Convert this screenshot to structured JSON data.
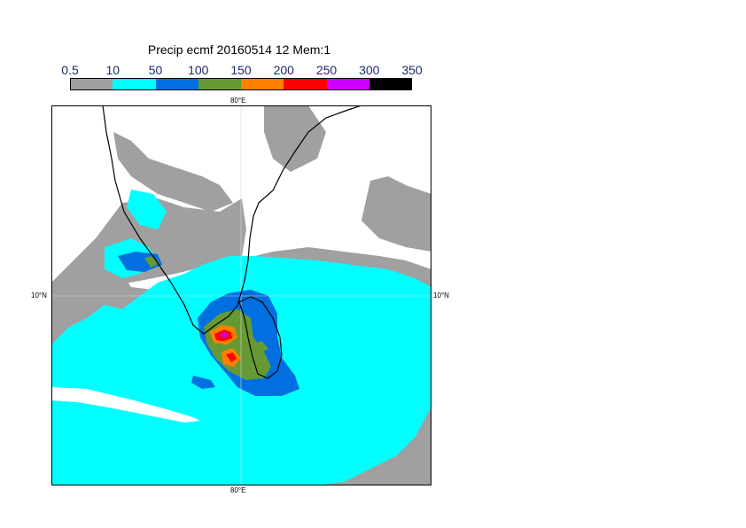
{
  "title": "Precip ecmf 20160514 12 Mem:1",
  "colorbar": {
    "ticks": [
      "0.5",
      "10",
      "50",
      "100",
      "150",
      "200",
      "250",
      "300",
      "350"
    ],
    "bins": [
      {
        "color": "#a0a0a0"
      },
      {
        "color": "#00ffff"
      },
      {
        "color": "#0070e0"
      },
      {
        "color": "#669933"
      },
      {
        "color": "#ff8000"
      },
      {
        "color": "#ff0000"
      },
      {
        "color": "#cc00ff"
      },
      {
        "color": "#000000"
      }
    ]
  },
  "axes": {
    "top_lon": "80°E",
    "bottom_lon": "80°E",
    "left_lat": "10°N",
    "right_lat": "10°N"
  },
  "map_colors": {
    "background": "#ffffff",
    "coast": "#000000",
    "gridline": "#d8d8d8"
  }
}
